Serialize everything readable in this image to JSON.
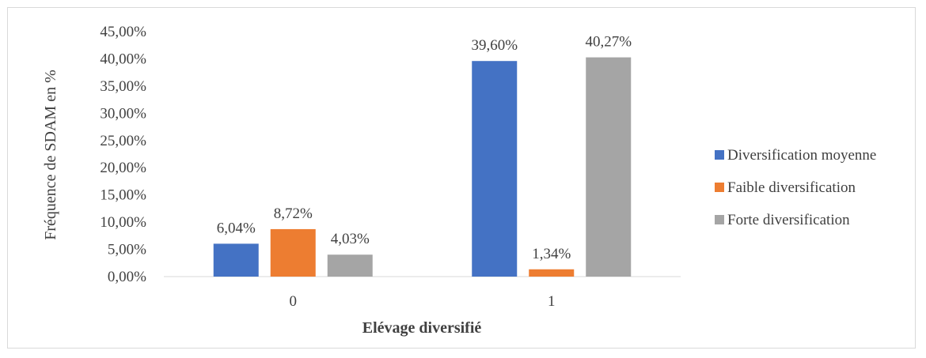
{
  "chart_data": {
    "type": "bar",
    "categories": [
      "0",
      "1"
    ],
    "series": [
      {
        "name": "Diversification moyenne",
        "color": "#4472c4",
        "values": [
          6.04,
          39.6
        ],
        "labels": [
          "6,04%",
          "39,60%"
        ]
      },
      {
        "name": "Faible diversification",
        "color": "#ed7d31",
        "values": [
          8.72,
          1.34
        ],
        "labels": [
          "8,72%",
          "1,34%"
        ]
      },
      {
        "name": "Forte diversification",
        "color": "#a5a5a5",
        "values": [
          4.03,
          40.27
        ],
        "labels": [
          "4,03%",
          "40,27%"
        ]
      }
    ],
    "ylim": [
      0,
      45
    ],
    "yticks": [
      "0,00%",
      "5,00%",
      "10,00%",
      "15,00%",
      "20,00%",
      "25,00%",
      "30,00%",
      "35,00%",
      "40,00%",
      "45,00%"
    ],
    "xlabel": "Elévage diversifié",
    "ylabel": "Fréquence de SDAM en %",
    "legend_position": "right",
    "grid": false
  }
}
